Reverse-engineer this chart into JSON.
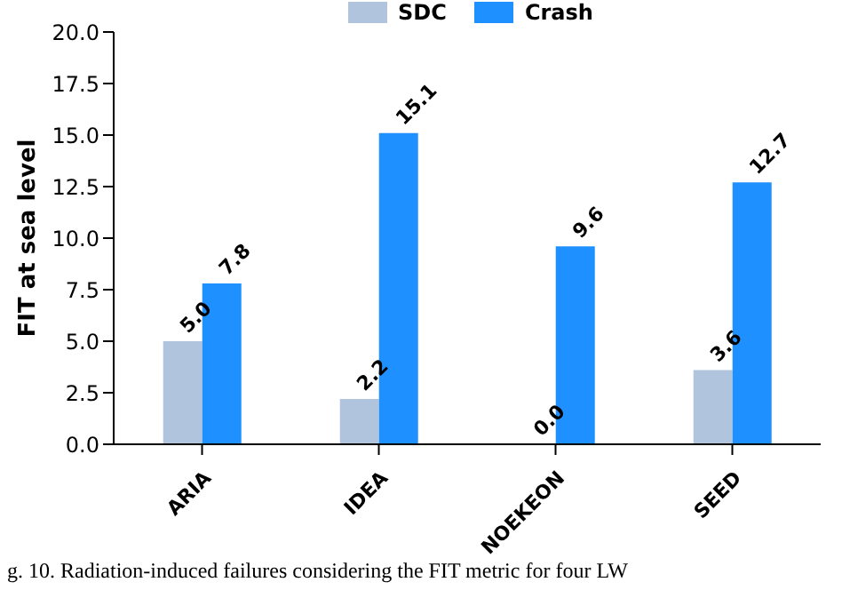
{
  "chart_data": {
    "type": "bar",
    "categories": [
      "ARIA",
      "IDEA",
      "NOEKEON",
      "SEED"
    ],
    "series": [
      {
        "name": "SDC",
        "color": "#b0c4de",
        "values": [
          5.0,
          2.2,
          0.0,
          3.6
        ],
        "value_labels": [
          "5.0",
          "2.2",
          "0.0",
          "3.6"
        ]
      },
      {
        "name": "Crash",
        "color": "#1e90ff",
        "values": [
          7.8,
          15.1,
          9.6,
          12.7
        ],
        "value_labels": [
          "7.8",
          "15.1",
          "9.6",
          "12.7"
        ]
      }
    ],
    "ylabel": "FIT at sea level",
    "ylim": [
      0,
      20
    ],
    "yticks": [
      {
        "value": 0,
        "label": "0.0"
      },
      {
        "value": 2.5,
        "label": "2.5"
      },
      {
        "value": 5,
        "label": "5.0"
      },
      {
        "value": 7.5,
        "label": "7.5"
      },
      {
        "value": 10,
        "label": "10.0"
      },
      {
        "value": 12.5,
        "label": "12.5"
      },
      {
        "value": 15,
        "label": "15.0"
      },
      {
        "value": 17.5,
        "label": "17.5"
      },
      {
        "value": 20,
        "label": "20.0"
      }
    ],
    "grid": false,
    "legend": "top",
    "annotations": [
      "g. 10.   Radiation-induced failures considering the FIT metric for four LW"
    ]
  }
}
